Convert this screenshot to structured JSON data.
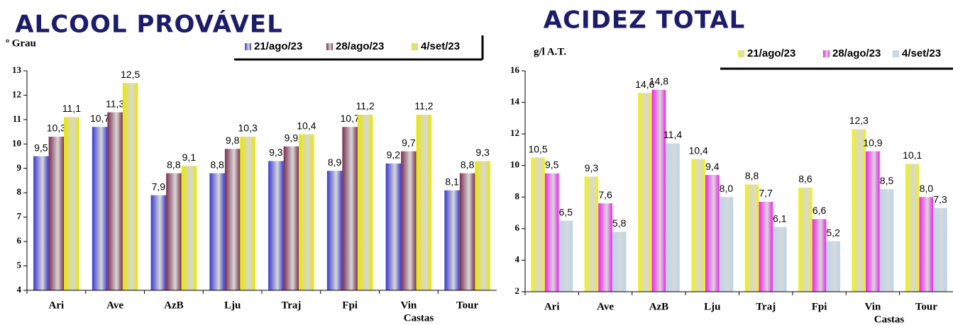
{
  "chart_data": [
    {
      "type": "bar",
      "title": "ALCOOL PROVÁVEL",
      "y_label": "º Grau",
      "x_label": "Castas",
      "categories": [
        "Ari",
        "Ave",
        "AzB",
        "Lju",
        "Traj",
        "Fpi",
        "Vin",
        "Tour"
      ],
      "series": [
        {
          "name": "21/ago/23",
          "color": "#3a3ad0",
          "values": [
            9.5,
            10.7,
            7.9,
            8.8,
            9.3,
            8.9,
            9.2,
            8.1
          ],
          "value_labels": [
            "9,5",
            "10,7",
            "7,9",
            "8,8",
            "9,3",
            "8,9",
            "9,2",
            "8,1"
          ]
        },
        {
          "name": "28/ago/23",
          "color": "#7a2e4e",
          "values": [
            10.3,
            11.3,
            8.8,
            9.8,
            9.9,
            10.7,
            9.7,
            8.8
          ],
          "value_labels": [
            "10,3",
            "11,3",
            "8,8",
            "9,8",
            "9,9",
            "10,7",
            "9,7",
            "8,8"
          ]
        },
        {
          "name": "4/set/23",
          "color": "#e8e800",
          "values": [
            11.1,
            12.5,
            9.1,
            10.3,
            10.4,
            11.2,
            11.2,
            9.3
          ],
          "value_labels": [
            "11,1",
            "12,5",
            "9,1",
            "10,3",
            "10,4",
            "11,2",
            "11,2",
            "9,3"
          ]
        }
      ],
      "ylim": [
        4,
        13
      ],
      "yticks": [
        4,
        5,
        6,
        7,
        8,
        9,
        10,
        11,
        12,
        13
      ]
    },
    {
      "type": "bar",
      "title": "ACIDEZ TOTAL",
      "y_label": "g/l A.T.",
      "x_label": "Castas",
      "categories": [
        "Ari",
        "Ave",
        "AzB",
        "Lju",
        "Traj",
        "Fpi",
        "Vin",
        "Tour"
      ],
      "series": [
        {
          "name": "21/ago/23",
          "color": "#f0f020",
          "values": [
            10.5,
            9.3,
            14.6,
            10.4,
            8.8,
            8.6,
            12.3,
            10.1
          ],
          "value_labels": [
            "10,5",
            "9,3",
            "14,6",
            "10,4",
            "8,8",
            "8,6",
            "12,3",
            "10,1"
          ]
        },
        {
          "name": "28/ago/23",
          "color": "#ee22ee",
          "values": [
            9.5,
            7.6,
            14.8,
            9.4,
            7.7,
            6.6,
            10.9,
            8.0
          ],
          "value_labels": [
            "9,5",
            "7,6",
            "14,8",
            "9,4",
            "7,7",
            "6,6",
            "10,9",
            "8,0"
          ]
        },
        {
          "name": "4/set/23",
          "color": "#b8d4ee",
          "values": [
            6.5,
            5.8,
            11.4,
            8.0,
            6.1,
            5.2,
            8.5,
            7.3
          ],
          "value_labels": [
            "6,5",
            "5,8",
            "11,4",
            "8,0",
            "6,1",
            "5,2",
            "8,5",
            "7,3"
          ]
        }
      ],
      "ylim": [
        2,
        16
      ],
      "yticks": [
        2,
        4,
        6,
        8,
        10,
        12,
        14,
        16
      ]
    }
  ]
}
